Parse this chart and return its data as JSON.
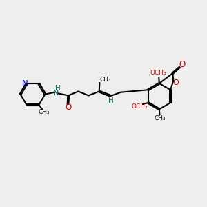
{
  "bg_color": "#eeeeee",
  "atom_colors": {
    "C": "#000000",
    "N": "#0000cc",
    "O": "#cc0000",
    "H": "#006666"
  },
  "bond_color": "#000000",
  "bond_width": 1.5,
  "figsize": [
    3.0,
    3.0
  ],
  "dpi": 100,
  "xlim": [
    0,
    10
  ],
  "ylim": [
    0,
    10
  ]
}
